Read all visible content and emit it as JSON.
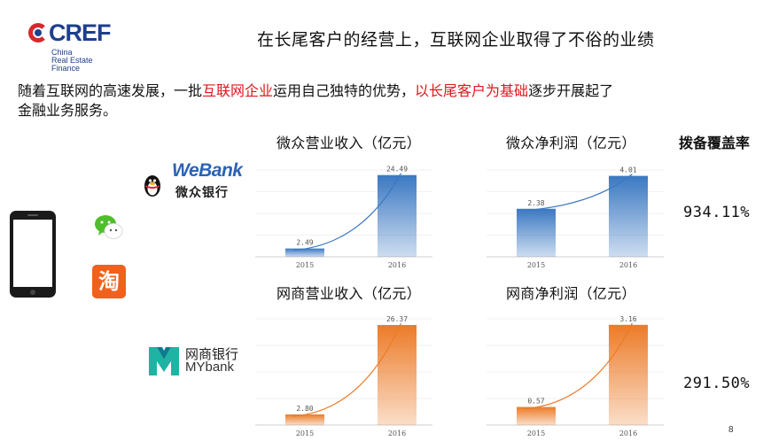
{
  "logo": {
    "name": "CREF",
    "sub": [
      "China",
      "Real Estate",
      "Finance"
    ]
  },
  "title": "在长尾客户的经营上，互联网企业取得了不俗的业绩",
  "intro": {
    "part1": "随着互联网的高速发展，一批",
    "highlight1": "互联网企业",
    "part2": "运用自己独特的优势，",
    "highlight2": "以长尾客户为基础",
    "part3": "逐步开展起了",
    "line2": "金融业务服务。"
  },
  "colors": {
    "highlight": "#e0161b",
    "webank_blue": "#3b78c2",
    "mybank_orange": "#ec7b28"
  },
  "webank": {
    "logo_text": "WeBank",
    "logo_cn": "微众银行"
  },
  "mybank": {
    "logo_cn": "网商银行",
    "logo_en": "MYbank"
  },
  "icons": [
    "smartphone-icon",
    "wechat-icon",
    "taobao-icon",
    "penguin-icon",
    "mybank-mark-icon"
  ],
  "taobao_glyph": "淘",
  "coverage": {
    "title": "拨备覆盖率",
    "webank": "934.11%",
    "mybank": "291.50%"
  },
  "chart_data": [
    {
      "type": "bar",
      "title": "微众营业收入（亿元）",
      "categories": [
        "2015",
        "2016"
      ],
      "values": [
        2.49,
        24.49
      ],
      "labels": [
        "2.49",
        "24.49"
      ],
      "ylim": [
        0,
        26
      ],
      "color": "#3b78c2",
      "trend": true
    },
    {
      "type": "bar",
      "title": "微众净利润（亿元）",
      "categories": [
        "2015",
        "2016"
      ],
      "values": [
        2.38,
        4.01
      ],
      "labels": [
        "2.38",
        "4.01"
      ],
      "ylim": [
        0,
        4.3
      ],
      "color": "#3b78c2",
      "trend": true
    },
    {
      "type": "bar",
      "title": "网商营业收入（亿元）",
      "categories": [
        "2015",
        "2016"
      ],
      "values": [
        2.8,
        26.37
      ],
      "labels": [
        "2.80",
        "26.37"
      ],
      "ylim": [
        0,
        28
      ],
      "color": "#ec7b28",
      "trend": true
    },
    {
      "type": "bar",
      "title": "网商净利润（亿元）",
      "categories": [
        "2015",
        "2016"
      ],
      "values": [
        0.57,
        3.16
      ],
      "labels": [
        "0.57",
        "3.16"
      ],
      "ylim": [
        0,
        3.35
      ],
      "color": "#ec7b28",
      "trend": true
    }
  ],
  "page_number": "8"
}
